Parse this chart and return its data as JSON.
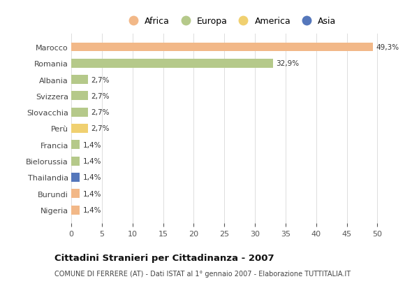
{
  "countries": [
    "Marocco",
    "Romania",
    "Albania",
    "Svizzera",
    "Slovacchia",
    "Perù",
    "Francia",
    "Bielorussia",
    "Thailandia",
    "Burundi",
    "Nigeria"
  ],
  "values": [
    49.3,
    32.9,
    2.7,
    2.7,
    2.7,
    2.7,
    1.4,
    1.4,
    1.4,
    1.4,
    1.4
  ],
  "labels": [
    "49,3%",
    "32,9%",
    "2,7%",
    "2,7%",
    "2,7%",
    "2,7%",
    "1,4%",
    "1,4%",
    "1,4%",
    "1,4%",
    "1,4%"
  ],
  "regions": [
    "Africa",
    "Europa",
    "Europa",
    "Europa",
    "Europa",
    "America",
    "Europa",
    "Europa",
    "Asia",
    "Africa",
    "Africa"
  ],
  "colors": {
    "Africa": "#F2B888",
    "Europa": "#B5C98A",
    "America": "#F0D070",
    "Asia": "#5577BB"
  },
  "xlim": [
    0,
    52
  ],
  "xticks": [
    0,
    5,
    10,
    15,
    20,
    25,
    30,
    35,
    40,
    45,
    50
  ],
  "title": "Cittadini Stranieri per Cittadinanza - 2007",
  "subtitle": "COMUNE DI FERRERE (AT) - Dati ISTAT al 1° gennaio 2007 - Elaborazione TUTTITALIA.IT",
  "background_color": "#ffffff",
  "bar_height": 0.55,
  "legend_order": [
    "Africa",
    "Europa",
    "America",
    "Asia"
  ]
}
